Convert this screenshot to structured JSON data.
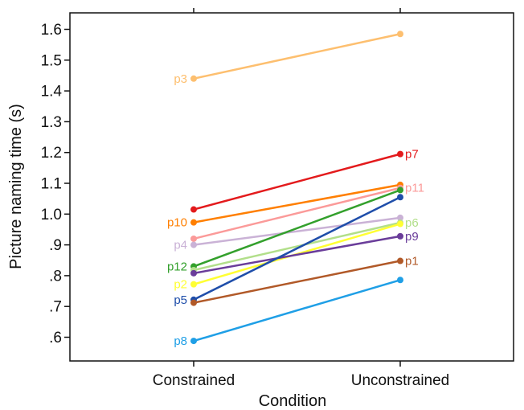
{
  "chart_data": {
    "type": "line",
    "xlabel": "Condition",
    "ylabel": "Picture naming time (s)",
    "categories": [
      "Constrained",
      "Unconstrained"
    ],
    "ylim": [
      0.5,
      1.65
    ],
    "yticks": [
      {
        "value": 0.6,
        "label": ".6"
      },
      {
        "value": 0.7,
        "label": ".7"
      },
      {
        "value": 0.8,
        "label": ".8"
      },
      {
        "value": 0.9,
        "label": ".9"
      },
      {
        "value": 1.0,
        "label": "1.0"
      },
      {
        "value": 1.1,
        "label": "1.1"
      },
      {
        "value": 1.2,
        "label": "1.2"
      },
      {
        "value": 1.3,
        "label": "1.3"
      },
      {
        "value": 1.4,
        "label": "1.4"
      },
      {
        "value": 1.5,
        "label": "1.5"
      },
      {
        "value": 1.6,
        "label": "1.6"
      }
    ],
    "grid": false,
    "series": [
      {
        "name": "p3",
        "values": [
          1.44,
          1.585
        ],
        "color": "#fdbf6f",
        "label_side": "left"
      },
      {
        "name": "p7",
        "values": [
          1.015,
          1.195
        ],
        "color": "#e31a1c",
        "label_side": "right"
      },
      {
        "name": "p10",
        "values": [
          0.973,
          1.095
        ],
        "color": "#ff7f00",
        "label_side": "left"
      },
      {
        "name": "p11",
        "values": [
          0.92,
          1.085
        ],
        "color": "#fb9a99",
        "label_side": "right"
      },
      {
        "name": "p4",
        "values": [
          0.9,
          0.988
        ],
        "color": "#cab2d6",
        "label_side": "left"
      },
      {
        "name": "p12",
        "values": [
          0.83,
          1.078
        ],
        "color": "#33a02c",
        "label_side": "left"
      },
      {
        "name": "p6",
        "values": [
          0.818,
          0.972
        ],
        "color": "#b2df8a",
        "label_side": "right"
      },
      {
        "name": "p2",
        "values": [
          0.772,
          0.968
        ],
        "color": "#ffff33",
        "label_side": "left"
      },
      {
        "name": "p9",
        "values": [
          0.808,
          0.928
        ],
        "color": "#6a3d9a",
        "label_side": "right"
      },
      {
        "name": "p5",
        "values": [
          0.722,
          1.055
        ],
        "color": "#1f4eaa",
        "label_side": "left"
      },
      {
        "name": "p1",
        "values": [
          0.712,
          0.848
        ],
        "color": "#b15928",
        "label_side": "right"
      },
      {
        "name": "p8",
        "values": [
          0.588,
          0.786
        ],
        "color": "#1f9fe6",
        "label_side": "left"
      }
    ]
  }
}
